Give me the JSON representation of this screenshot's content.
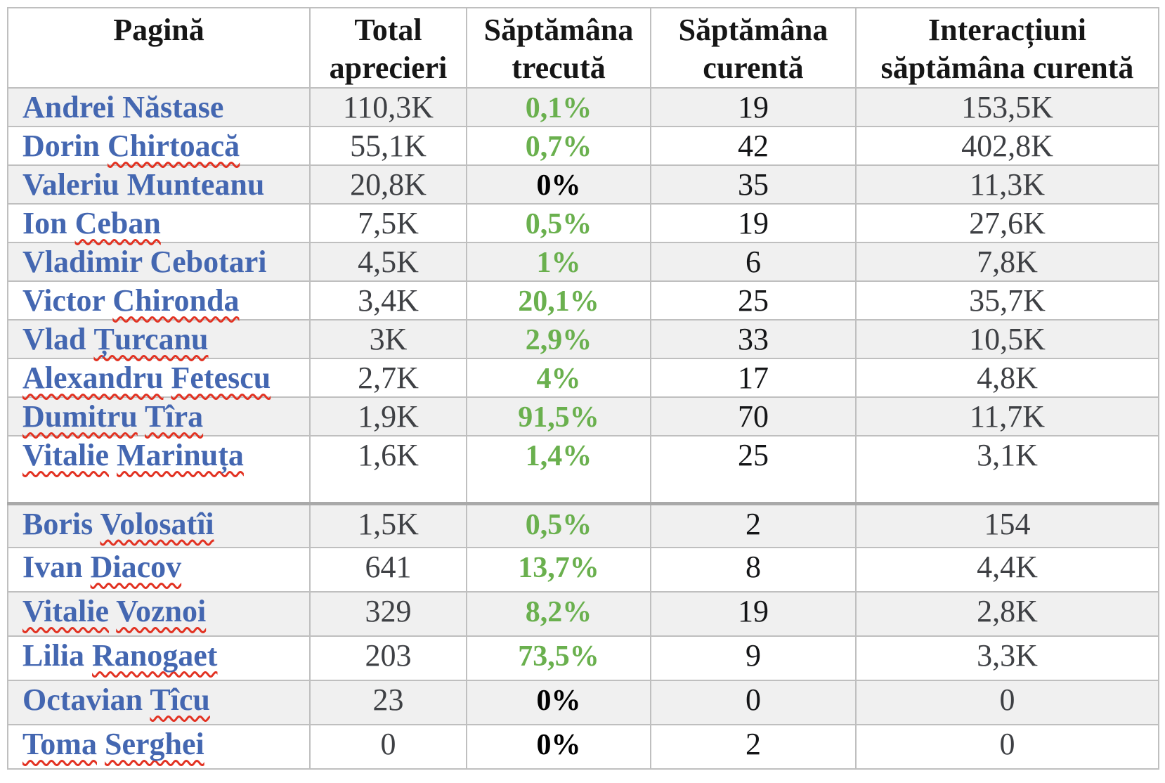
{
  "table": {
    "columns": [
      {
        "label": "Pagină"
      },
      {
        "label": "Total aprecieri"
      },
      {
        "label": "Săptămâna trecută"
      },
      {
        "label": "Săptămâna curentă"
      },
      {
        "label": "Interacțiuni săptămâna curentă"
      }
    ],
    "rows": [
      {
        "name": "Andrei Năstase",
        "misspelled_words": [],
        "total_likes": "110,3K",
        "last_week": "0,1%",
        "last_week_color": "green",
        "current_week": "19",
        "interactions": "153,5K"
      },
      {
        "name": "Dorin Chirtoacă",
        "misspelled_words": [
          1
        ],
        "total_likes": "55,1K",
        "last_week": "0,7%",
        "last_week_color": "green",
        "current_week": "42",
        "interactions": "402,8K"
      },
      {
        "name": "Valeriu Munteanu",
        "misspelled_words": [],
        "total_likes": "20,8K",
        "last_week": "0%",
        "last_week_color": "black",
        "current_week": "35",
        "interactions": "11,3K"
      },
      {
        "name": "Ion Ceban",
        "misspelled_words": [
          1
        ],
        "total_likes": "7,5K",
        "last_week": "0,5%",
        "last_week_color": "green",
        "current_week": "19",
        "interactions": "27,6K"
      },
      {
        "name": "Vladimir Cebotari",
        "misspelled_words": [],
        "total_likes": "4,5K",
        "last_week": "1%",
        "last_week_color": "green",
        "current_week": "6",
        "interactions": "7,8K"
      },
      {
        "name": "Victor Chironda",
        "misspelled_words": [
          1
        ],
        "total_likes": "3,4K",
        "last_week": "20,1%",
        "last_week_color": "green",
        "current_week": "25",
        "interactions": "35,7K"
      },
      {
        "name": "Vlad Țurcanu",
        "misspelled_words": [
          1
        ],
        "total_likes": "3K",
        "last_week": "2,9%",
        "last_week_color": "green",
        "current_week": "33",
        "interactions": "10,5K"
      },
      {
        "name": "Alexandru Fetescu",
        "misspelled_words": [
          0,
          1
        ],
        "total_likes": "2,7K",
        "last_week": "4%",
        "last_week_color": "green",
        "current_week": "17",
        "interactions": "4,8K"
      },
      {
        "name": "Dumitru Tîra",
        "misspelled_words": [
          0,
          1
        ],
        "total_likes": "1,9K",
        "last_week": "91,5%",
        "last_week_color": "green",
        "current_week": "70",
        "interactions": "11,7K"
      },
      {
        "name": "Vitalie Marinuța",
        "misspelled_words": [
          0,
          1
        ],
        "total_likes": "1,6K",
        "last_week": "1,4%",
        "last_week_color": "green",
        "current_week": "25",
        "interactions": "3,1K",
        "tall_row": true
      },
      {
        "name": "Boris Volosatîi",
        "misspelled_words": [
          1
        ],
        "total_likes": "1,5K",
        "last_week": "0,5%",
        "last_week_color": "green",
        "current_week": "2",
        "interactions": "154",
        "new_section": true
      },
      {
        "name": "Ivan Diacov",
        "misspelled_words": [
          1
        ],
        "total_likes": "641",
        "last_week": "13,7%",
        "last_week_color": "green",
        "current_week": "8",
        "interactions": "4,4K"
      },
      {
        "name": "Vitalie Voznoi",
        "misspelled_words": [
          0,
          1
        ],
        "total_likes": "329",
        "last_week": "8,2%",
        "last_week_color": "green",
        "current_week": "19",
        "interactions": "2,8K"
      },
      {
        "name": "Lilia Ranogaet",
        "misspelled_words": [
          1
        ],
        "total_likes": "203",
        "last_week": "73,5%",
        "last_week_color": "green",
        "current_week": "9",
        "interactions": "3,3K"
      },
      {
        "name": "Octavian Tîcu",
        "misspelled_words": [
          1
        ],
        "total_likes": "23",
        "last_week": "0%",
        "last_week_color": "black",
        "current_week": "0",
        "interactions": "0"
      },
      {
        "name": "Toma Serghei",
        "misspelled_words": [
          0,
          1
        ],
        "total_likes": "0",
        "last_week": "0%",
        "last_week_color": "black",
        "current_week": "2",
        "interactions": "0"
      }
    ]
  },
  "colors": {
    "link_blue": "#4467b1",
    "positive_green": "#6ab04e",
    "spellcheck_red": "#e23222",
    "shaded_row": "#f0f0f0",
    "grid_border": "#bfbfbf"
  }
}
